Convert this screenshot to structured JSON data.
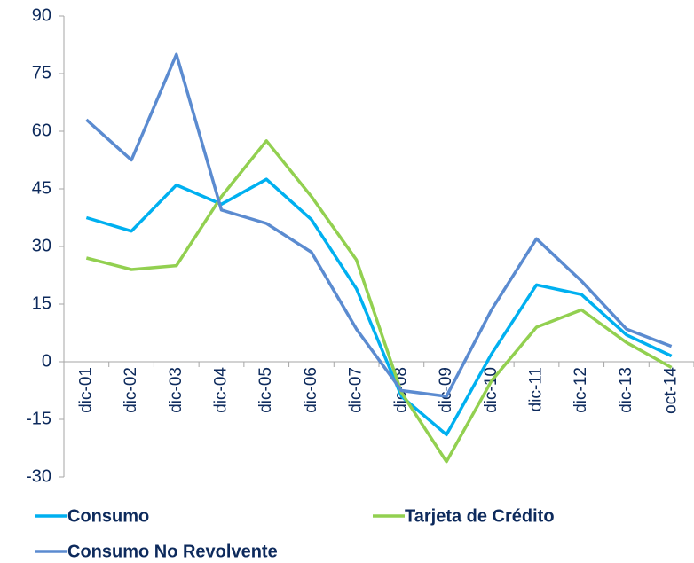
{
  "chart_data": {
    "type": "line",
    "categories": [
      "dic-01",
      "dic-02",
      "dic-03",
      "dic-04",
      "dic-05",
      "dic-06",
      "dic-07",
      "dic-08",
      "dic-09",
      "dic-10",
      "dic-11",
      "dic-12",
      "dic-13",
      "oct-14"
    ],
    "series": [
      {
        "name": "Consumo",
        "color": "#00b0f0",
        "values": [
          37.5,
          34,
          46,
          41,
          47.5,
          37,
          19,
          -9,
          -19,
          2,
          20,
          17.5,
          7,
          1.5
        ]
      },
      {
        "name": "Tarjeta de Crédito",
        "color": "#92d050",
        "values": [
          27,
          24,
          25,
          43,
          57.5,
          43,
          26.5,
          -8,
          -26,
          -5,
          9,
          13.5,
          5,
          -1.5
        ]
      },
      {
        "name": "Consumo No Revolvente",
        "color": "#5b8bd0",
        "values": [
          63,
          52.5,
          80,
          39.5,
          36,
          28.5,
          8.5,
          -7.5,
          -9,
          13.5,
          32,
          21,
          8.5,
          4
        ]
      }
    ],
    "ylim": [
      -30,
      90
    ],
    "yticks": [
      -30,
      -15,
      0,
      15,
      30,
      45,
      60,
      75,
      90
    ],
    "grid": false
  }
}
